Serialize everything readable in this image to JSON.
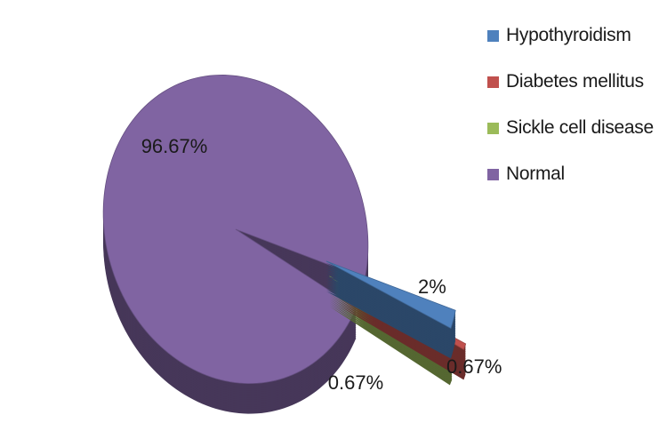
{
  "chart_data": {
    "type": "pie",
    "title": "",
    "three_d": true,
    "legend_position": "right",
    "series": [
      {
        "name": "",
        "categories": [
          "Hypothyroidism",
          "Diabetes mellitus",
          "Sickle cell disease",
          "Normal"
        ],
        "values": [
          2,
          0.67,
          0.67,
          96.67
        ],
        "labels": [
          "2%",
          "0.67%",
          "0.67%",
          "96.67%"
        ],
        "colors": [
          "#4F81BD",
          "#C0504D",
          "#9BBB59",
          "#8064A2"
        ],
        "exploded": [
          true,
          true,
          true,
          false
        ]
      }
    ]
  },
  "legend": {
    "items": [
      {
        "label": "Hypothyroidism",
        "color": "#4F81BD"
      },
      {
        "label": "Diabetes mellitus",
        "color": "#C0504D"
      },
      {
        "label": "Sickle cell disease",
        "color": "#9BBB59"
      },
      {
        "label": "Normal",
        "color": "#8064A2"
      }
    ]
  }
}
